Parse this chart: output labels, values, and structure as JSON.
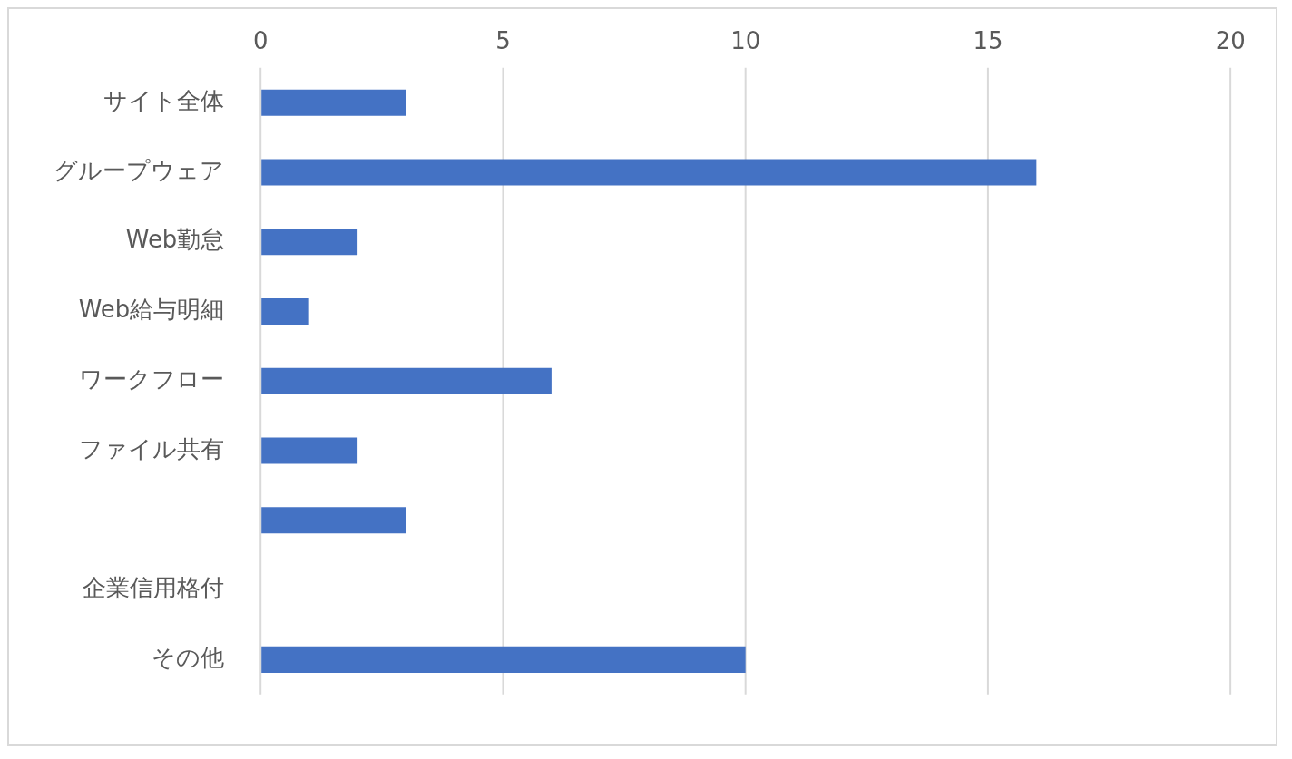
{
  "chart_data": {
    "type": "bar",
    "orientation": "horizontal",
    "categories": [
      "サイト全体",
      "グループウェア",
      "Web勤怠",
      "Web給与明細",
      "ワークフロー",
      "ファイル共有",
      null,
      "企業信用格付",
      "その他"
    ],
    "values": [
      3,
      16,
      2,
      1,
      6,
      2,
      3,
      0,
      10
    ],
    "color": "#4472c4",
    "xlim": [
      0,
      20
    ],
    "xticks": [
      0,
      5,
      10,
      15,
      20
    ],
    "grid": "x",
    "legend": false
  }
}
